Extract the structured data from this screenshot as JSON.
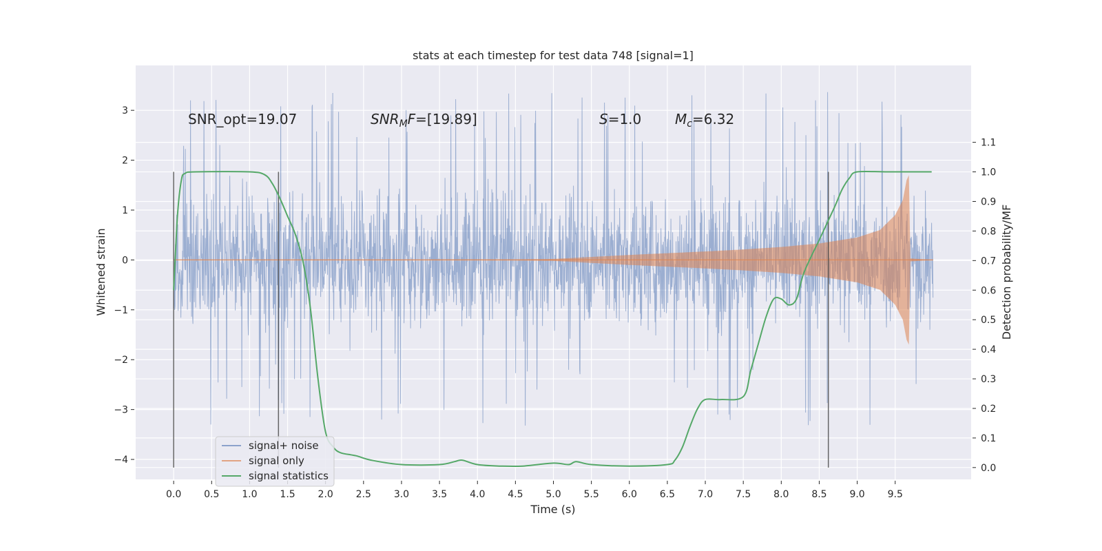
{
  "chart_data": {
    "type": "line",
    "title": "stats at each timestep for test data 748 [signal=1]",
    "xlabel": "Time (s)",
    "ylabel": "Whitened strain",
    "y2label": "Detection probability/MF",
    "xlim": [
      -0.5,
      10.5
    ],
    "ylim": [
      -4.4,
      3.9
    ],
    "y2lim": [
      -0.04,
      1.36
    ],
    "x_ticks": [
      "0.0",
      "0.5",
      "1.0",
      "1.5",
      "2.0",
      "2.5",
      "3.0",
      "3.5",
      "4.0",
      "4.5",
      "5.0",
      "5.5",
      "6.0",
      "6.5",
      "7.0",
      "7.5",
      "8.0",
      "8.5",
      "9.0",
      "9.5"
    ],
    "y_ticks": [
      "3",
      "2",
      "1",
      "0",
      "−1",
      "−2",
      "−3",
      "−4"
    ],
    "y2_ticks": [
      "1.1",
      "1.0",
      "0.9",
      "0.8",
      "0.7",
      "0.6",
      "0.5",
      "0.4",
      "0.3",
      "0.2",
      "0.1",
      "0.0"
    ],
    "grid": true,
    "legend_position": "lower-left",
    "annotations": {
      "snr_opt": "SNR_opt=19.07",
      "snr_mf_name": "SNR",
      "snr_mf_sub": "M",
      "snr_mf_tail": "F",
      "snr_mf_value": "=[19.89]",
      "s_name": "S",
      "s_value": "=1.0",
      "mc_name": "M",
      "mc_sub": "c",
      "mc_value": "=6.32"
    },
    "vertical_markers": [
      0.0,
      1.38,
      8.62
    ],
    "series": [
      {
        "name": "signal+ noise",
        "axis": "left",
        "color": "#4c72b0",
        "typical_amplitude": 1.5,
        "max_amplitude": 3.4,
        "x_range": [
          0.0,
          10.0
        ]
      },
      {
        "name": "signal only",
        "axis": "left",
        "color": "#dd8452",
        "envelope": {
          "t": [
            0,
            4.5,
            5.0,
            6.0,
            7.0,
            7.5,
            8.0,
            8.5,
            9.0,
            9.3,
            9.5,
            9.6,
            9.65,
            9.68,
            9.7,
            10.0
          ],
          "amp": [
            0,
            0.01,
            0.02,
            0.1,
            0.17,
            0.21,
            0.26,
            0.33,
            0.45,
            0.6,
            0.9,
            1.2,
            1.6,
            1.7,
            0.03,
            0.0
          ]
        }
      },
      {
        "name": "signal statistics",
        "axis": "right",
        "color": "#55a868",
        "x": [
          0.0,
          0.05,
          0.1,
          0.15,
          0.3,
          1.0,
          1.2,
          1.3,
          1.4,
          1.5,
          1.6,
          1.7,
          1.8,
          1.9,
          2.0,
          2.1,
          2.2,
          2.4,
          2.6,
          3.0,
          3.5,
          3.7,
          3.8,
          4.0,
          4.3,
          4.6,
          5.0,
          5.2,
          5.3,
          5.5,
          6.0,
          6.5,
          6.6,
          6.7,
          6.8,
          6.9,
          7.0,
          7.2,
          7.5,
          7.6,
          7.7,
          7.8,
          7.9,
          8.0,
          8.1,
          8.2,
          8.3,
          8.5,
          8.7,
          8.8,
          8.9,
          9.0,
          9.4,
          9.98
        ],
        "y": [
          0.6,
          0.85,
          0.97,
          0.995,
          1.0,
          1.0,
          0.99,
          0.96,
          0.91,
          0.85,
          0.79,
          0.7,
          0.54,
          0.3,
          0.12,
          0.07,
          0.05,
          0.04,
          0.025,
          0.01,
          0.01,
          0.02,
          0.025,
          0.01,
          0.005,
          0.005,
          0.015,
          0.01,
          0.02,
          0.01,
          0.005,
          0.01,
          0.025,
          0.07,
          0.14,
          0.2,
          0.23,
          0.23,
          0.24,
          0.33,
          0.42,
          0.51,
          0.57,
          0.57,
          0.55,
          0.57,
          0.66,
          0.77,
          0.88,
          0.94,
          0.98,
          1.0,
          1.0,
          1.0
        ]
      }
    ]
  }
}
